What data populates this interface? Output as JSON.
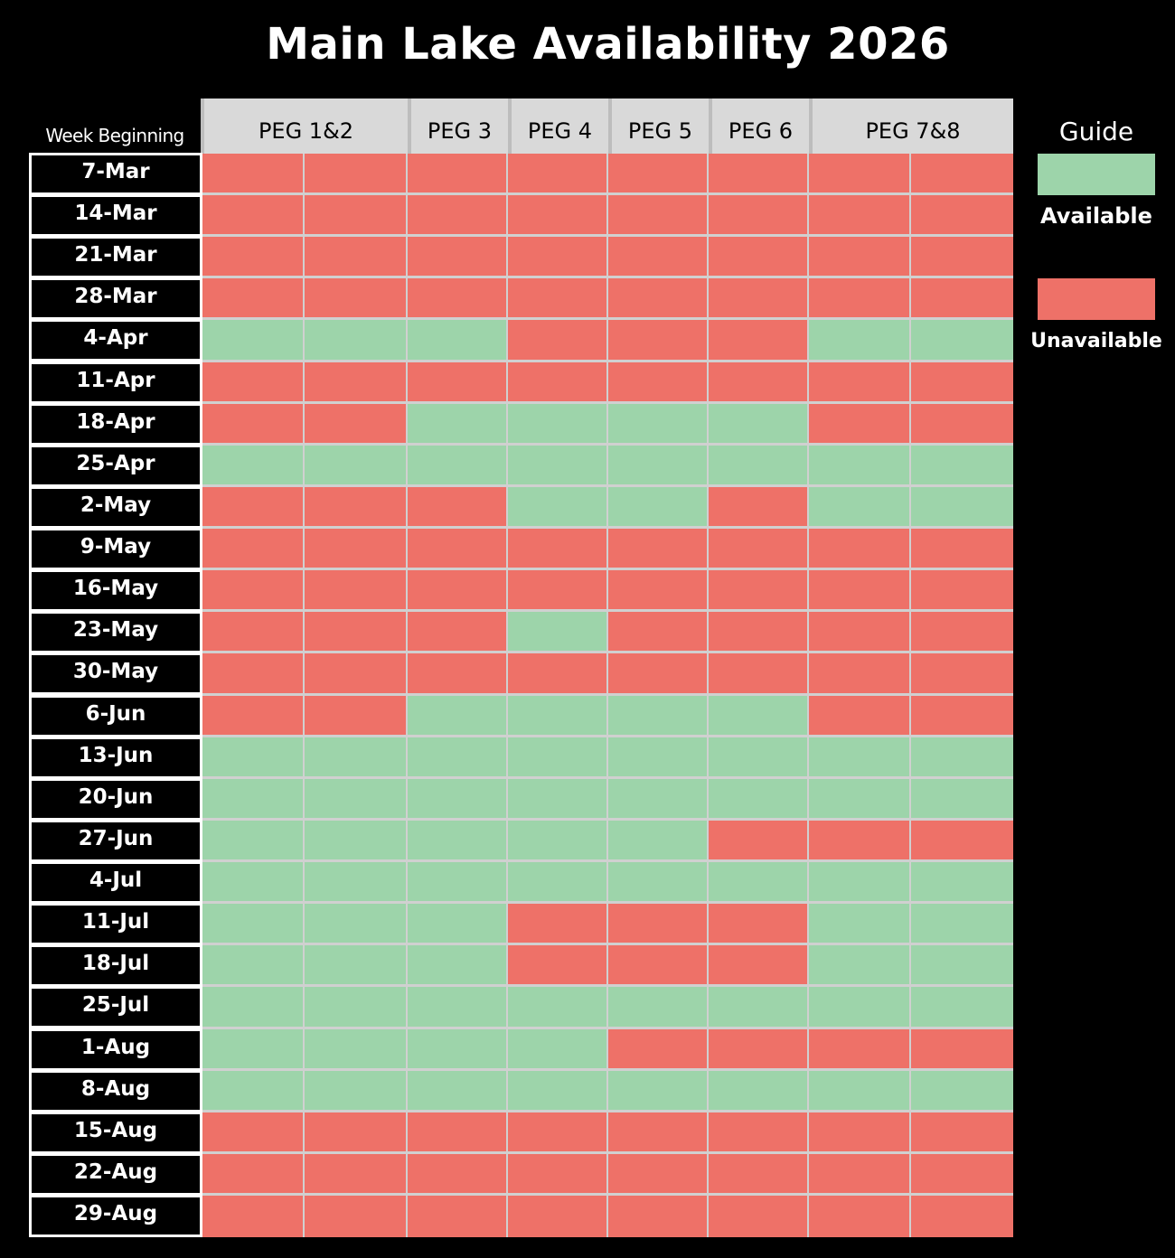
{
  "title": "Main Lake Availability 2026",
  "week_header": "Week Beginning",
  "colors": {
    "available": "#9dd4aa",
    "unavailable": "#ee7168",
    "header_bg": "#d9d9d9",
    "background": "#000000"
  },
  "guide": {
    "title": "Guide",
    "available_label": "Available",
    "unavailable_label": "Unavailable"
  },
  "chart_data": {
    "type": "heatmap",
    "title": "Main Lake Availability 2026",
    "row_header": "Week Beginning",
    "column_groups": [
      {
        "label": "PEG 1&2",
        "columns": 2
      },
      {
        "label": "PEG 3",
        "columns": 1
      },
      {
        "label": "PEG 4",
        "columns": 1
      },
      {
        "label": "PEG 5",
        "columns": 1
      },
      {
        "label": "PEG 6",
        "columns": 1
      },
      {
        "label": "PEG 7&8",
        "columns": 2
      }
    ],
    "legend": {
      "A": "Available",
      "U": "Unavailable"
    },
    "rows": [
      {
        "week": "7-Mar",
        "status": [
          "U",
          "U",
          "U",
          "U",
          "U",
          "U",
          "U",
          "U"
        ]
      },
      {
        "week": "14-Mar",
        "status": [
          "U",
          "U",
          "U",
          "U",
          "U",
          "U",
          "U",
          "U"
        ]
      },
      {
        "week": "21-Mar",
        "status": [
          "U",
          "U",
          "U",
          "U",
          "U",
          "U",
          "U",
          "U"
        ]
      },
      {
        "week": "28-Mar",
        "status": [
          "U",
          "U",
          "U",
          "U",
          "U",
          "U",
          "U",
          "U"
        ]
      },
      {
        "week": "4-Apr",
        "status": [
          "A",
          "A",
          "A",
          "U",
          "U",
          "U",
          "A",
          "A"
        ]
      },
      {
        "week": "11-Apr",
        "status": [
          "U",
          "U",
          "U",
          "U",
          "U",
          "U",
          "U",
          "U"
        ]
      },
      {
        "week": "18-Apr",
        "status": [
          "U",
          "U",
          "A",
          "A",
          "A",
          "A",
          "U",
          "U"
        ]
      },
      {
        "week": "25-Apr",
        "status": [
          "A",
          "A",
          "A",
          "A",
          "A",
          "A",
          "A",
          "A"
        ]
      },
      {
        "week": "2-May",
        "status": [
          "U",
          "U",
          "U",
          "A",
          "A",
          "U",
          "A",
          "A"
        ]
      },
      {
        "week": "9-May",
        "status": [
          "U",
          "U",
          "U",
          "U",
          "U",
          "U",
          "U",
          "U"
        ]
      },
      {
        "week": "16-May",
        "status": [
          "U",
          "U",
          "U",
          "U",
          "U",
          "U",
          "U",
          "U"
        ]
      },
      {
        "week": "23-May",
        "status": [
          "U",
          "U",
          "U",
          "A",
          "U",
          "U",
          "U",
          "U"
        ]
      },
      {
        "week": "30-May",
        "status": [
          "U",
          "U",
          "U",
          "U",
          "U",
          "U",
          "U",
          "U"
        ]
      },
      {
        "week": "6-Jun",
        "status": [
          "U",
          "U",
          "A",
          "A",
          "A",
          "A",
          "U",
          "U"
        ]
      },
      {
        "week": "13-Jun",
        "status": [
          "A",
          "A",
          "A",
          "A",
          "A",
          "A",
          "A",
          "A"
        ]
      },
      {
        "week": "20-Jun",
        "status": [
          "A",
          "A",
          "A",
          "A",
          "A",
          "A",
          "A",
          "A"
        ]
      },
      {
        "week": "27-Jun",
        "status": [
          "A",
          "A",
          "A",
          "A",
          "A",
          "U",
          "U",
          "U"
        ]
      },
      {
        "week": "4-Jul",
        "status": [
          "A",
          "A",
          "A",
          "A",
          "A",
          "A",
          "A",
          "A"
        ]
      },
      {
        "week": "11-Jul",
        "status": [
          "A",
          "A",
          "A",
          "U",
          "U",
          "U",
          "A",
          "A"
        ]
      },
      {
        "week": "18-Jul",
        "status": [
          "A",
          "A",
          "A",
          "U",
          "U",
          "U",
          "A",
          "A"
        ]
      },
      {
        "week": "25-Jul",
        "status": [
          "A",
          "A",
          "A",
          "A",
          "A",
          "A",
          "A",
          "A"
        ]
      },
      {
        "week": "1-Aug",
        "status": [
          "A",
          "A",
          "A",
          "A",
          "U",
          "U",
          "U",
          "U"
        ]
      },
      {
        "week": "8-Aug",
        "status": [
          "A",
          "A",
          "A",
          "A",
          "A",
          "A",
          "A",
          "A"
        ]
      },
      {
        "week": "15-Aug",
        "status": [
          "U",
          "U",
          "U",
          "U",
          "U",
          "U",
          "U",
          "U"
        ]
      },
      {
        "week": "22-Aug",
        "status": [
          "U",
          "U",
          "U",
          "U",
          "U",
          "U",
          "U",
          "U"
        ]
      },
      {
        "week": "29-Aug",
        "status": [
          "U",
          "U",
          "U",
          "U",
          "U",
          "U",
          "U",
          "U"
        ]
      }
    ]
  }
}
